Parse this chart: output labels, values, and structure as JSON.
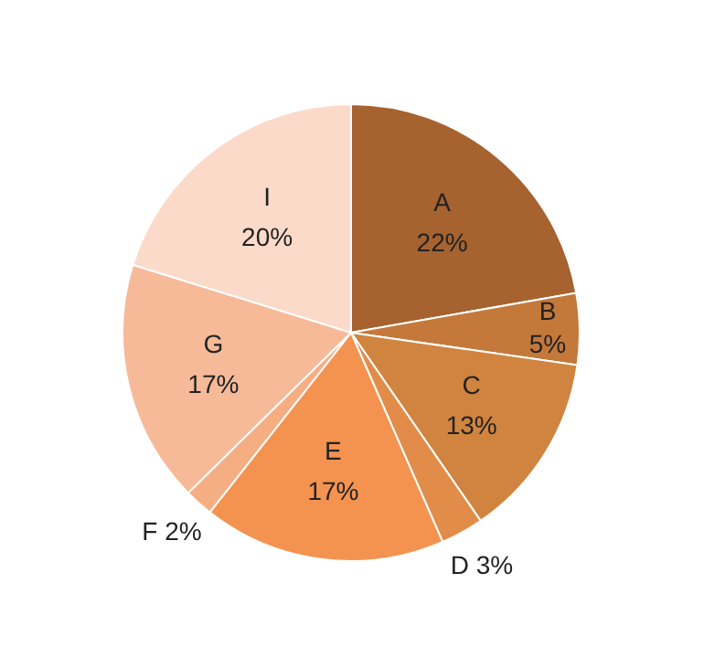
{
  "chart_data": {
    "type": "pie",
    "categories": [
      "A",
      "B",
      "C",
      "D",
      "E",
      "F",
      "G",
      "I"
    ],
    "values": [
      22,
      5,
      13,
      3,
      17,
      2,
      17,
      20
    ],
    "value_labels": [
      "22%",
      "5%",
      "13%",
      "3%",
      "17%",
      "2%",
      "17%",
      "20%"
    ],
    "colors": [
      "#a6622f",
      "#c4783a",
      "#d0843f",
      "#e28c4a",
      "#f4934f",
      "#f5ad82",
      "#f6ba99",
      "#fcdaca"
    ]
  }
}
